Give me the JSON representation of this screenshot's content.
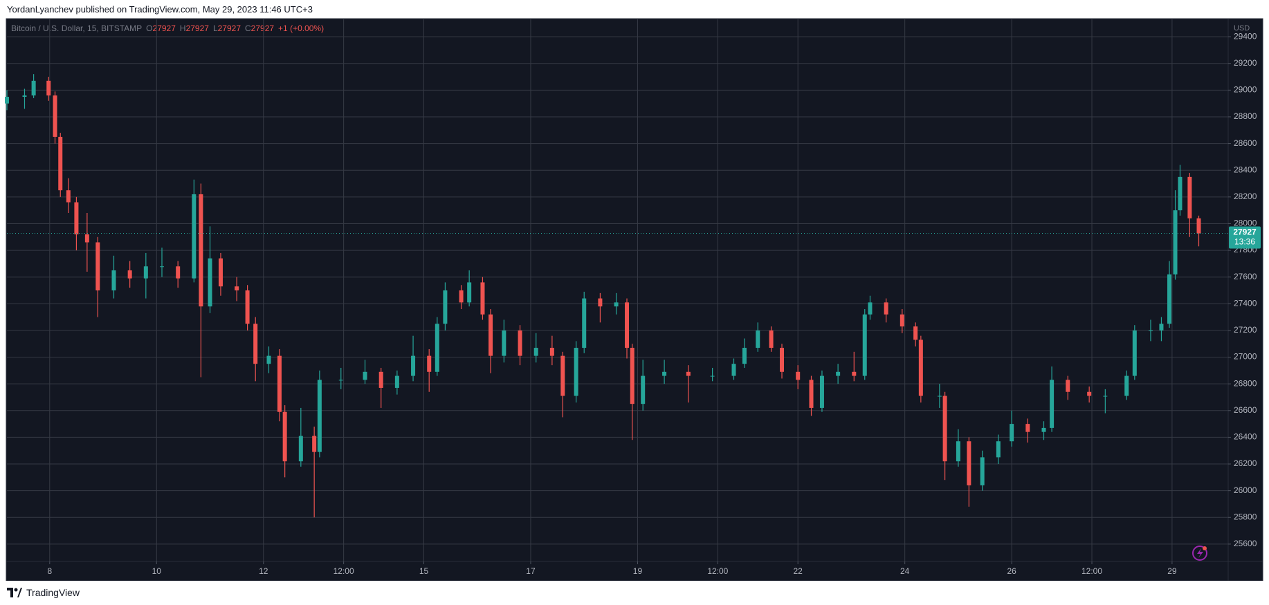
{
  "header": {
    "byline": "YordanLyanchev published on TradingView.com, May 29, 2023 11:46 UTC+3"
  },
  "footer": {
    "brand": "TradingView"
  },
  "chart_data": {
    "type": "candlestick",
    "title": "Bitcoin / U.S. Dollar, 15, BITSTAMP",
    "legend_ohlc": [
      {
        "label": "O",
        "value": 27927
      },
      {
        "label": "H",
        "value": 27927
      },
      {
        "label": "L",
        "value": 27927
      },
      {
        "label": "C",
        "value": 27927
      }
    ],
    "legend_change": "+1 (+0.00%)",
    "y_axis_label": "USD",
    "last_price": 27927,
    "countdown": "13:36",
    "up_color": "#26a69a",
    "down_color": "#ef5350",
    "grid": true,
    "x": [
      7.2,
      7.53,
      7.7,
      7.98,
      8.1,
      8.2,
      8.35,
      8.5,
      8.7,
      8.9,
      9.2,
      9.5,
      9.8,
      10.1,
      10.4,
      10.7,
      10.83,
      11,
      11.2,
      11.5,
      11.7,
      11.85,
      12.1,
      12.3,
      12.4,
      12.7,
      12.95,
      13.05,
      13.45,
      13.9,
      14.2,
      14.5,
      14.8,
      15.1,
      15.25,
      15.4,
      15.7,
      15.85,
      16.1,
      16.25,
      16.5,
      16.8,
      17.1,
      17.4,
      17.6,
      17.85,
      18,
      18.3,
      18.6,
      18.8,
      18.9,
      19.1,
      19.5,
      19.95,
      20.4,
      20.8,
      21,
      21.25,
      21.5,
      21.7,
      22,
      22.25,
      22.45,
      22.75,
      23.05,
      23.25,
      23.35,
      23.65,
      23.95,
      24.2,
      24.3,
      24.65,
      24.75,
      25,
      25.2,
      25.45,
      25.75,
      26,
      26.3,
      26.6,
      26.75,
      27.05,
      27.45,
      27.75,
      28.15,
      28.3,
      28.6,
      28.8,
      28.95,
      29.06,
      29.15,
      29.33,
      29.5
    ],
    "open": [
      28900,
      28950,
      28960,
      29070,
      28960,
      28650,
      28250,
      28160,
      27920,
      27860,
      27500,
      27650,
      27590,
      27680,
      27680,
      27590,
      28220,
      27380,
      27740,
      27530,
      27500,
      27250,
      26950,
      27010,
      26590,
      26220,
      26410,
      26290,
      26830,
      26830,
      26890,
      26770,
      26860,
      27010,
      26890,
      27250,
      27500,
      27410,
      27560,
      27320,
      27010,
      27200,
      27010,
      27070,
      27010,
      26710,
      27070,
      27440,
      27380,
      27410,
      27070,
      26650,
      26860,
      26890,
      26860,
      26860,
      26950,
      27070,
      27200,
      27070,
      26890,
      26830,
      26620,
      26860,
      26890,
      26860,
      27320,
      27410,
      27320,
      27230,
      27130,
      26710,
      26710,
      26220,
      26370,
      26040,
      26250,
      26370,
      26500,
      26440,
      26470,
      26830,
      26740,
      26710,
      26710,
      26860,
      27200,
      27200,
      27250,
      27620,
      28100,
      28350,
      28040
    ],
    "high": [
      29000,
      29010,
      29120,
      29100,
      28990,
      28680,
      28340,
      28200,
      28080,
      27900,
      27760,
      27720,
      27780,
      27820,
      27720,
      28330,
      28300,
      27980,
      27780,
      27600,
      27540,
      27300,
      27080,
      27060,
      26640,
      26620,
      26480,
      26900,
      26920,
      26980,
      26920,
      26900,
      27160,
      27060,
      27300,
      27560,
      27540,
      27650,
      27600,
      27360,
      27280,
      27240,
      27180,
      27160,
      27040,
      27120,
      27490,
      27480,
      27480,
      27440,
      27100,
      26980,
      26980,
      26940,
      26920,
      26990,
      27140,
      27260,
      27230,
      27100,
      26940,
      26860,
      26900,
      26950,
      27040,
      27360,
      27460,
      27440,
      27360,
      27260,
      27160,
      26800,
      26740,
      26460,
      26400,
      26300,
      26420,
      26600,
      26540,
      26520,
      26930,
      26860,
      26780,
      26760,
      26900,
      27240,
      27280,
      27300,
      27720,
      28250,
      28440,
      28380,
      28060
    ],
    "low": [
      28850,
      28860,
      28940,
      28920,
      28600,
      28200,
      28080,
      27800,
      27640,
      27300,
      27440,
      27520,
      27440,
      27600,
      27520,
      27560,
      26850,
      27330,
      27460,
      27420,
      27200,
      26820,
      26880,
      26520,
      26100,
      26180,
      25800,
      26250,
      26760,
      26800,
      26620,
      26720,
      26820,
      26740,
      26860,
      27200,
      27360,
      27380,
      27280,
      26880,
      26960,
      26940,
      26960,
      26940,
      26550,
      26660,
      27030,
      27260,
      27320,
      26990,
      26380,
      26600,
      26800,
      26660,
      26820,
      26830,
      26920,
      27040,
      27040,
      26840,
      26760,
      26560,
      26590,
      26800,
      26820,
      26830,
      27280,
      27260,
      27180,
      27080,
      26660,
      26620,
      26080,
      26180,
      25880,
      26000,
      26200,
      26330,
      26360,
      26380,
      26440,
      26680,
      26660,
      26580,
      26680,
      26830,
      27120,
      27120,
      27220,
      27580,
      28060,
      27900,
      27830
    ],
    "close": [
      28950,
      28960,
      29070,
      28960,
      28650,
      28250,
      28160,
      27920,
      27860,
      27500,
      27650,
      27590,
      27680,
      27680,
      27590,
      28220,
      27380,
      27740,
      27530,
      27500,
      27250,
      26950,
      27010,
      26590,
      26220,
      26410,
      26290,
      26830,
      26830,
      26890,
      26770,
      26860,
      27010,
      26890,
      27250,
      27500,
      27410,
      27560,
      27320,
      27010,
      27200,
      27010,
      27070,
      27010,
      26710,
      27070,
      27440,
      27380,
      27410,
      27070,
      26650,
      26860,
      26890,
      26860,
      26860,
      26950,
      27070,
      27200,
      27070,
      26890,
      26830,
      26620,
      26860,
      26890,
      26860,
      27320,
      27410,
      27320,
      27230,
      27130,
      26710,
      26710,
      26220,
      26370,
      26040,
      26250,
      26370,
      26500,
      26440,
      26470,
      26830,
      26740,
      26710,
      26710,
      26860,
      27200,
      27200,
      27250,
      27620,
      28100,
      28350,
      28040,
      27927
    ],
    "xlim": [
      7.2,
      30.05
    ],
    "ylim": [
      25470,
      29530
    ],
    "xticks": [
      {
        "value": 8,
        "label": "8"
      },
      {
        "value": 10,
        "label": "10"
      },
      {
        "value": 12,
        "label": "12"
      },
      {
        "value": 13.5,
        "label": "12:00"
      },
      {
        "value": 15,
        "label": "15"
      },
      {
        "value": 17,
        "label": "17"
      },
      {
        "value": 19,
        "label": "19"
      },
      {
        "value": 20.5,
        "label": "12:00"
      },
      {
        "value": 22,
        "label": "22"
      },
      {
        "value": 24,
        "label": "24"
      },
      {
        "value": 26,
        "label": "26"
      },
      {
        "value": 27.5,
        "label": "12:00"
      },
      {
        "value": 29,
        "label": "29"
      }
    ],
    "yticks": [
      25600,
      25800,
      26000,
      26200,
      26400,
      26600,
      26800,
      27000,
      27200,
      27400,
      27600,
      27800,
      28000,
      28200,
      28400,
      28600,
      28800,
      29000,
      29200,
      29400
    ]
  }
}
